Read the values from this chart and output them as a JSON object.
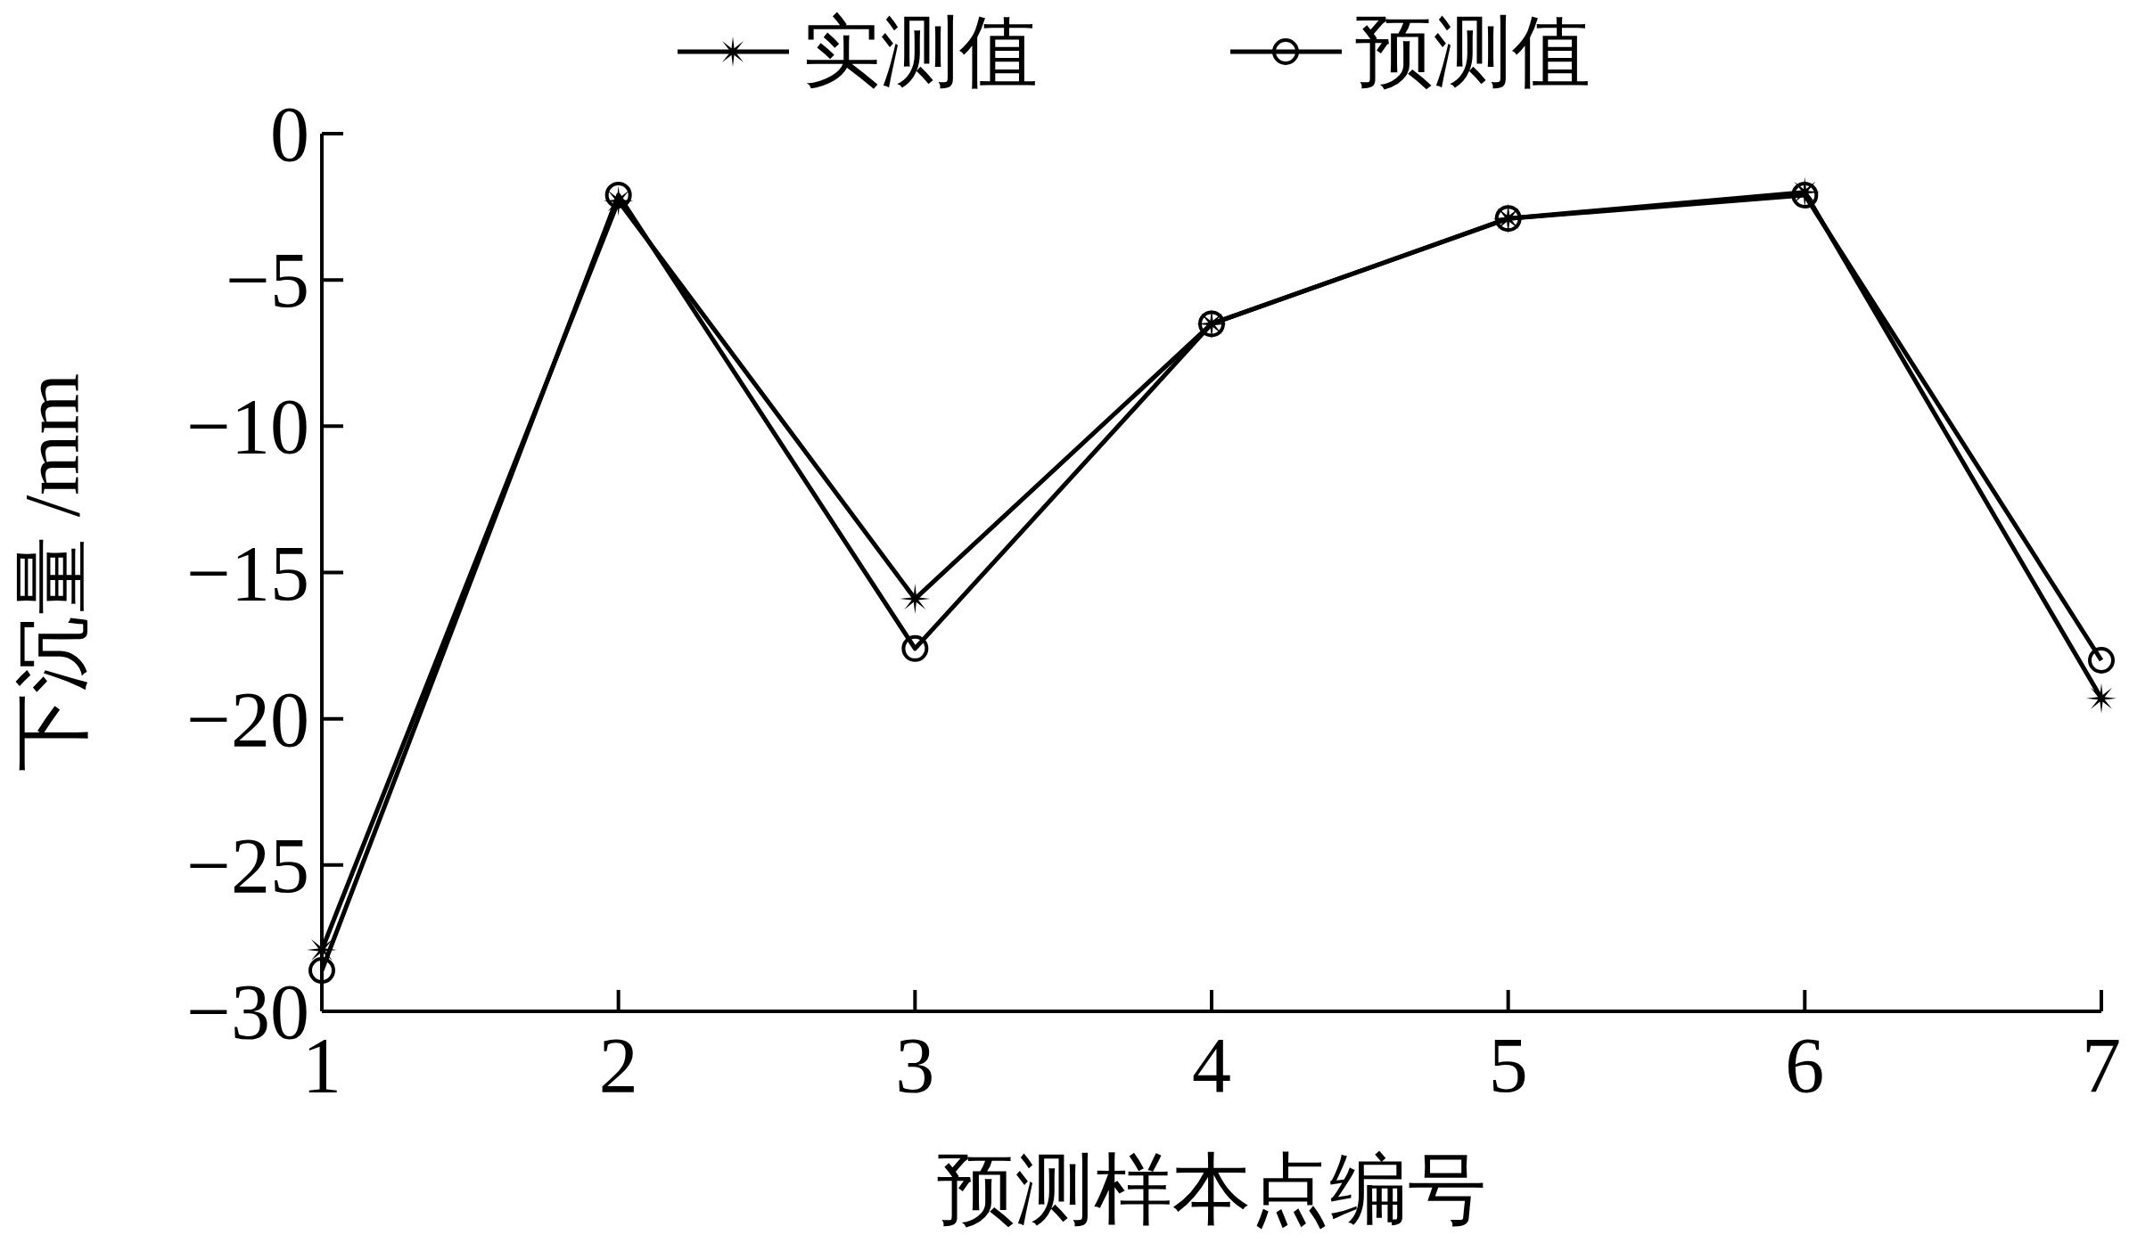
{
  "chart_data": {
    "type": "line",
    "xlabel": "预测样本点编号",
    "ylabel": "下沉量 /mm",
    "legend": "top",
    "grid": false,
    "x": [
      1,
      2,
      3,
      4,
      5,
      6,
      7
    ],
    "xlim": [
      1,
      7
    ],
    "xticks": [
      1,
      2,
      3,
      4,
      5,
      6,
      7
    ],
    "ylim": [
      -30,
      0
    ],
    "yticks": [
      {
        "value": -30,
        "label": "−30"
      },
      {
        "value": -25,
        "label": "−25"
      },
      {
        "value": -20,
        "label": "−20"
      },
      {
        "value": -15,
        "label": "−15"
      },
      {
        "value": -10,
        "label": "−10"
      },
      {
        "value": -5,
        "label": "−5"
      },
      0
    ],
    "series": [
      {
        "name": "实测值",
        "color": "#000000",
        "marker": "star",
        "values": [
          -27.9,
          -2.3,
          -15.9,
          -6.5,
          -2.9,
          -2.0,
          -19.3
        ]
      },
      {
        "name": "预测值",
        "color": "#000000",
        "marker": "circle",
        "values": [
          -28.6,
          -2.1,
          -17.6,
          -6.5,
          -2.9,
          -2.1,
          -18.0
        ]
      }
    ]
  }
}
